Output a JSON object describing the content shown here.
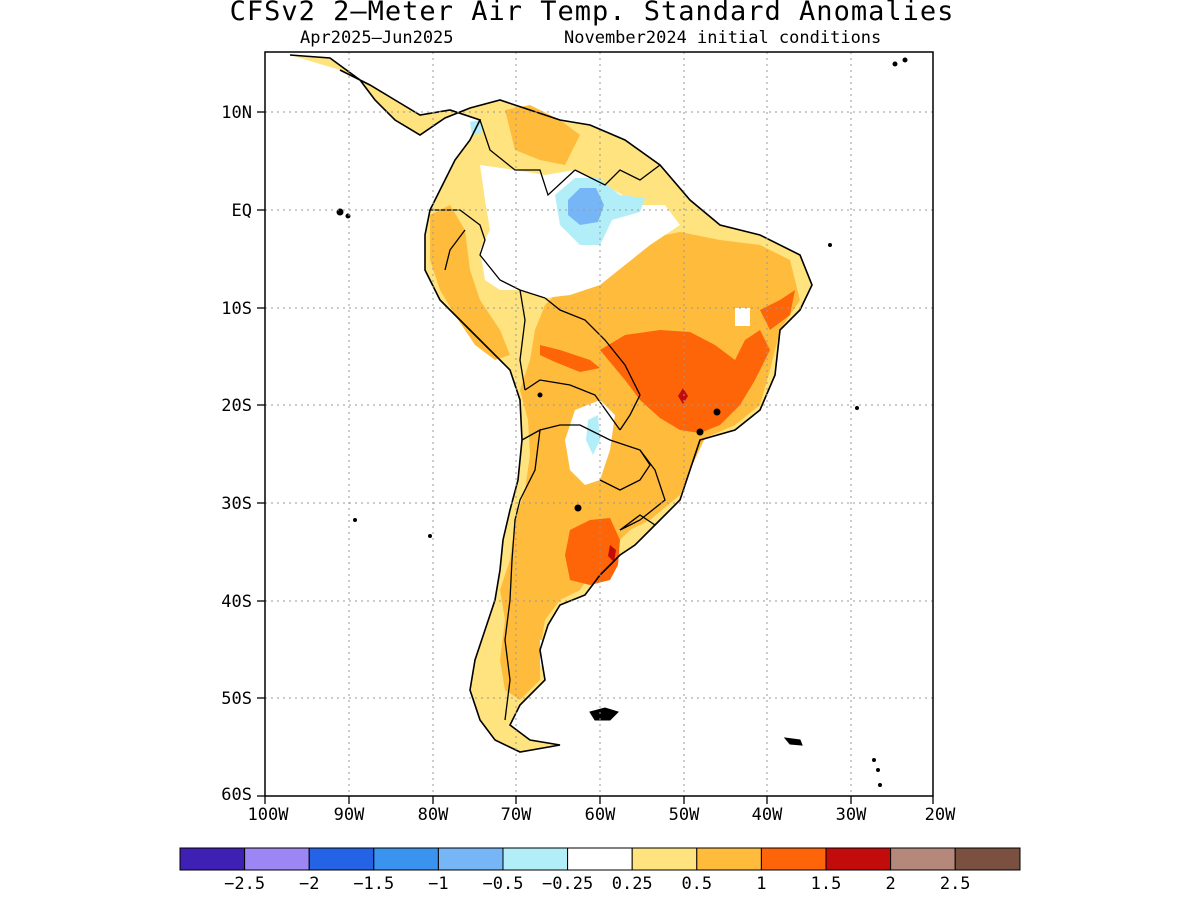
{
  "title": "CFSv2 2–Meter Air Temp. Standard Anomalies",
  "subtitle_left": "Apr2025–Jun2025",
  "subtitle_right": "November2024 initial conditions",
  "map": {
    "lon_ticks": [
      "100W",
      "90W",
      "80W",
      "70W",
      "60W",
      "50W",
      "40W",
      "30W",
      "20W"
    ],
    "lat_ticks": [
      "10N",
      "EQ",
      "10S",
      "20S",
      "30S",
      "40S",
      "50S",
      "60S"
    ],
    "extent": {
      "lon_min": -100,
      "lon_max": -20,
      "lat_min": -60,
      "lat_max": 16
    }
  },
  "colorbar": {
    "colors": [
      "#3f20b4",
      "#9b86f4",
      "#2463e6",
      "#3b93f0",
      "#76b6f7",
      "#b2eef8",
      "#ffffff",
      "#fee37e",
      "#ffbb3c",
      "#fe6408",
      "#c20b0b",
      "#b4897c",
      "#7a5040"
    ],
    "labels": [
      "−2.5",
      "−2",
      "−1.5",
      "−1",
      "−0.5",
      "−0.25",
      "0.25",
      "0.5",
      "1",
      "1.5",
      "2",
      "2.5"
    ]
  }
}
